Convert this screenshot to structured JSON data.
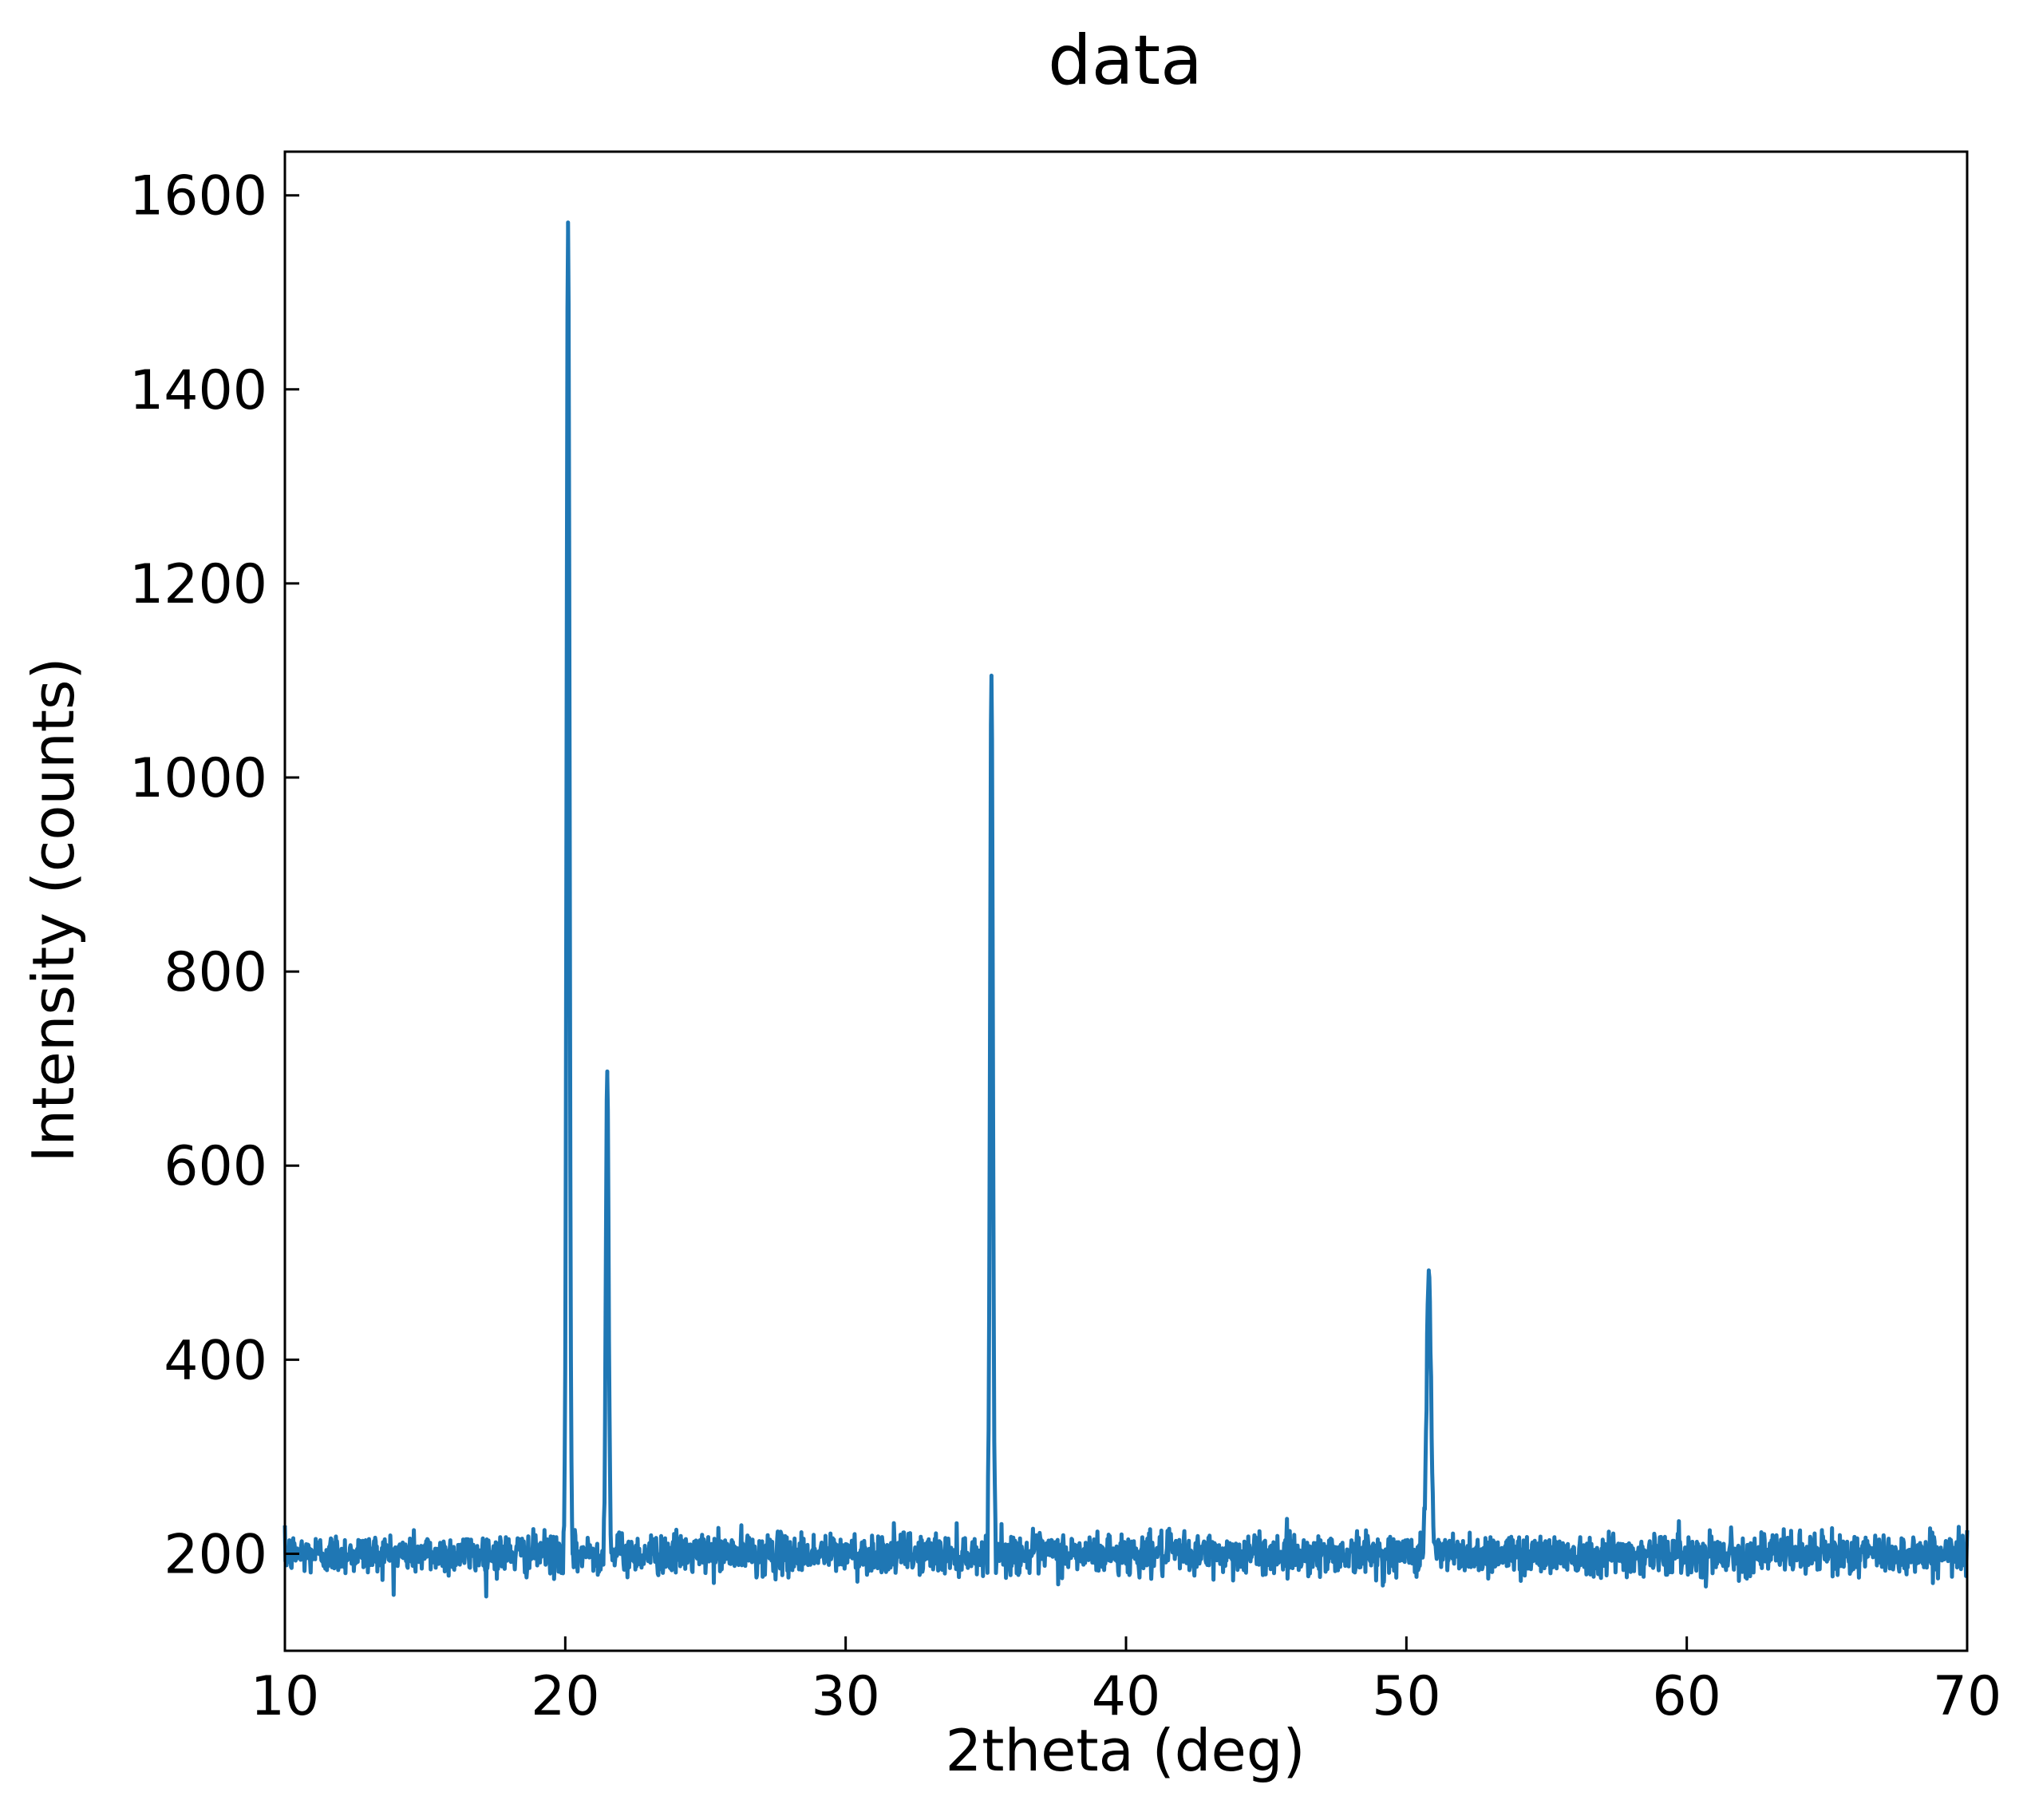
{
  "chart_data": {
    "type": "line",
    "title": "data",
    "xlabel": "2theta (deg)",
    "ylabel": "Intensity (counts)",
    "xlim": [
      10,
      70
    ],
    "ylim": [
      100,
      1645
    ],
    "xticks": [
      10,
      20,
      30,
      40,
      50,
      60,
      70
    ],
    "yticks": [
      200,
      400,
      600,
      800,
      1000,
      1200,
      1400,
      1600
    ],
    "grid": false,
    "baseline_counts": 200,
    "noise_amplitude_counts": 15,
    "peaks": [
      {
        "x": 20.1,
        "y": 1572,
        "fwhm": 0.12
      },
      {
        "x": 21.5,
        "y": 692,
        "fwhm": 0.12
      },
      {
        "x": 35.2,
        "y": 1105,
        "fwhm": 0.12
      },
      {
        "x": 50.8,
        "y": 492,
        "fwhm": 0.18
      }
    ],
    "series": [
      {
        "color": "#1f77b4"
      }
    ]
  }
}
